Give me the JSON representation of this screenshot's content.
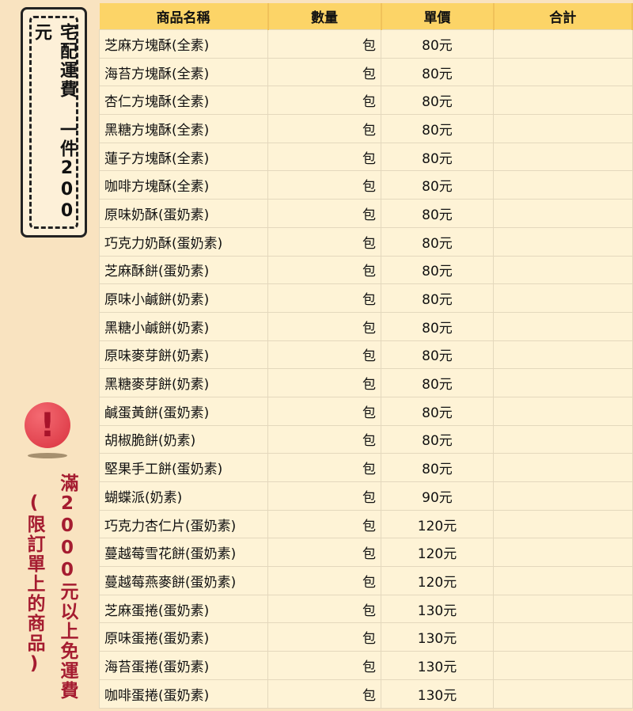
{
  "side": {
    "shipping_fee": "宅配運費 一件200元",
    "alert_icon": "exclamation-circle-icon",
    "free_shipping": "滿2000元以上免運費",
    "free_shipping_note": "(限訂單上的商品)"
  },
  "table": {
    "headers": [
      "商品名稱",
      "數量",
      "單價",
      "合計"
    ],
    "rows": [
      {
        "name": "芝麻方塊酥(全素)",
        "unit": "包",
        "price": "80元",
        "total": ""
      },
      {
        "name": "海苔方塊酥(全素)",
        "unit": "包",
        "price": "80元",
        "total": ""
      },
      {
        "name": "杏仁方塊酥(全素)",
        "unit": "包",
        "price": "80元",
        "total": ""
      },
      {
        "name": "黑糖方塊酥(全素)",
        "unit": "包",
        "price": "80元",
        "total": ""
      },
      {
        "name": "蓮子方塊酥(全素)",
        "unit": "包",
        "price": "80元",
        "total": ""
      },
      {
        "name": "咖啡方塊酥(全素)",
        "unit": "包",
        "price": "80元",
        "total": ""
      },
      {
        "name": "原味奶酥(蛋奶素)",
        "unit": "包",
        "price": "80元",
        "total": ""
      },
      {
        "name": "巧克力奶酥(蛋奶素)",
        "unit": "包",
        "price": "80元",
        "total": ""
      },
      {
        "name": "芝麻酥餅(蛋奶素)",
        "unit": "包",
        "price": "80元",
        "total": ""
      },
      {
        "name": "原味小鹹餅(奶素)",
        "unit": "包",
        "price": "80元",
        "total": ""
      },
      {
        "name": "黑糖小鹹餅(奶素)",
        "unit": "包",
        "price": "80元",
        "total": ""
      },
      {
        "name": "原味麥芽餅(奶素)",
        "unit": "包",
        "price": "80元",
        "total": ""
      },
      {
        "name": "黑糖麥芽餅(奶素)",
        "unit": "包",
        "price": "80元",
        "total": ""
      },
      {
        "name": "鹹蛋黃餅(蛋奶素)",
        "unit": "包",
        "price": "80元",
        "total": ""
      },
      {
        "name": "胡椒脆餅(奶素)",
        "unit": "包",
        "price": "80元",
        "total": ""
      },
      {
        "name": "堅果手工餅(蛋奶素)",
        "unit": "包",
        "price": "80元",
        "total": ""
      },
      {
        "name": "蝴蝶派(奶素)",
        "unit": "包",
        "price": "90元",
        "total": ""
      },
      {
        "name": "巧克力杏仁片(蛋奶素)",
        "unit": "包",
        "price": "120元",
        "total": ""
      },
      {
        "name": "蔓越莓雪花餅(蛋奶素)",
        "unit": "包",
        "price": "120元",
        "total": ""
      },
      {
        "name": "蔓越莓燕麥餅(蛋奶素)",
        "unit": "包",
        "price": "120元",
        "total": ""
      },
      {
        "name": "芝麻蛋捲(蛋奶素)",
        "unit": "包",
        "price": "130元",
        "total": ""
      },
      {
        "name": "原味蛋捲(蛋奶素)",
        "unit": "包",
        "price": "130元",
        "total": ""
      },
      {
        "name": "海苔蛋捲(蛋奶素)",
        "unit": "包",
        "price": "130元",
        "total": ""
      },
      {
        "name": "咖啡蛋捲(蛋奶素)",
        "unit": "包",
        "price": "130元",
        "total": ""
      }
    ]
  }
}
